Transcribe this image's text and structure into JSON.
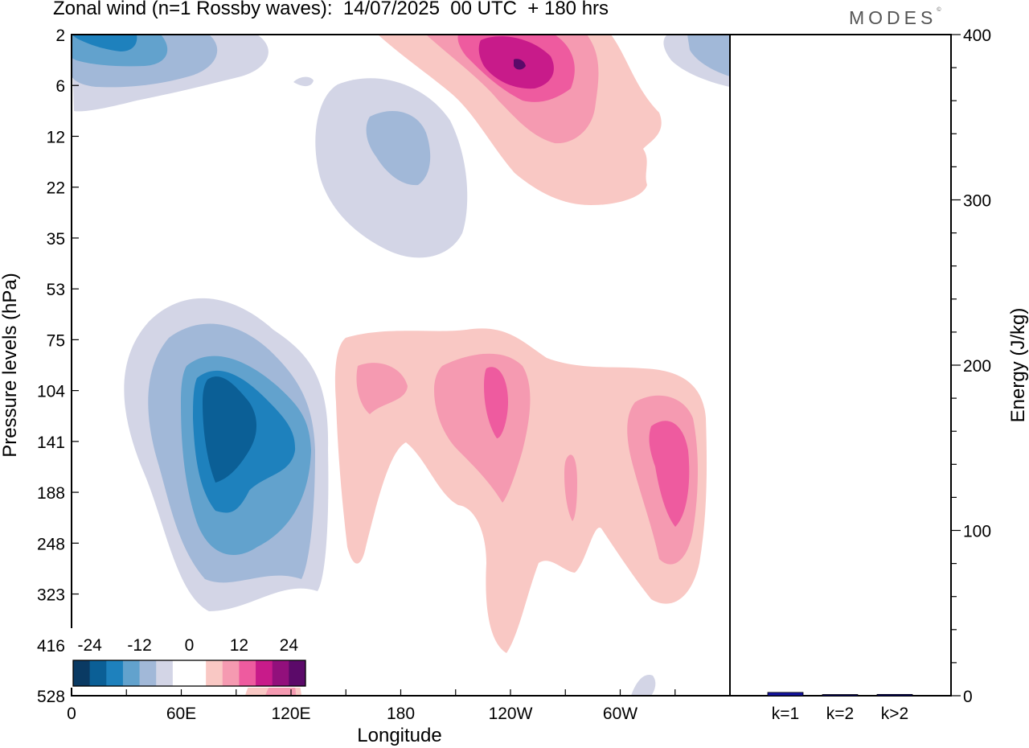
{
  "title": "Zonal wind (n=1 Rossby waves):  14/07/2025  00 UTC  + 180 hrs",
  "brand": "MODES",
  "brand_mark": "©",
  "colors": {
    "neg": [
      "#0a3a63",
      "#0b5f96",
      "#1e81bd",
      "#62a2cd",
      "#a1b8d8",
      "#d3d5e6"
    ],
    "zero": "#ffffff",
    "pos": [
      "#f9c8c4",
      "#f59ab1",
      "#ee5b9f",
      "#c81b8a",
      "#92107c",
      "#5b0a69"
    ],
    "energy_bar": "#1414a0"
  },
  "chart_data": [
    {
      "type": "heatmap",
      "title": "Zonal wind (n=1 Rossby waves):  14/07/2025  00 UTC  + 180 hrs",
      "xlabel": "Longitude",
      "ylabel": "Pressure levels (hPa)",
      "x_ticks": [
        "0",
        "60E",
        "120E",
        "180",
        "120W",
        "60W"
      ],
      "x_tick_degrees": [
        0,
        60,
        120,
        180,
        240,
        300
      ],
      "x_range_degrees": [
        0,
        360
      ],
      "y_ticks": [
        "2",
        "6",
        "12",
        "22",
        "35",
        "53",
        "75",
        "104",
        "141",
        "188",
        "248",
        "323",
        "416",
        "528"
      ],
      "colorbar_labels": [
        "-24",
        "-12",
        "0",
        "12",
        "24"
      ],
      "colorbar_levels": [
        -30,
        -25,
        -20,
        -15,
        -10,
        -5,
        0,
        5,
        10,
        15,
        20,
        25,
        30
      ],
      "features": [
        {
          "sign": "negative",
          "lon": 75,
          "level": "141",
          "peak": -24
        },
        {
          "sign": "negative",
          "lon": 20,
          "level": "2",
          "peak": -15
        },
        {
          "sign": "negative",
          "lon": 165,
          "level": "12",
          "peak": -10
        },
        {
          "sign": "positive",
          "lon": 245,
          "level": "2",
          "peak": 25
        },
        {
          "sign": "positive",
          "lon": 230,
          "level": "104",
          "peak": 12
        },
        {
          "sign": "positive",
          "lon": 328,
          "level": "141",
          "peak": 15
        },
        {
          "sign": "positive",
          "lon": 165,
          "level": "104",
          "peak": 10
        }
      ]
    },
    {
      "type": "bar",
      "ylabel": "Energy (J/kg)",
      "categories": [
        "k=1",
        "k=2",
        "k>2"
      ],
      "values": [
        2.0,
        0.6,
        0.8
      ],
      "ylim": [
        0,
        400
      ],
      "y_ticks": [
        "0",
        "100",
        "200",
        "300",
        "400"
      ]
    }
  ]
}
